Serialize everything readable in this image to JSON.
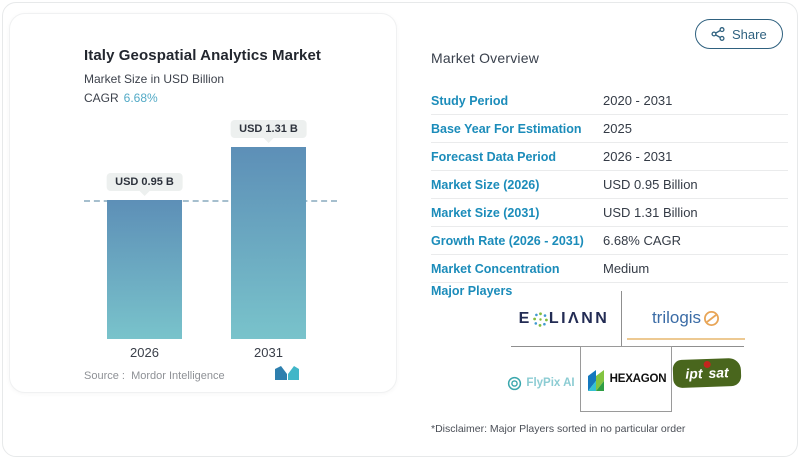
{
  "left_card": {
    "title": "Italy Geospatial Analytics Market",
    "subtitle": "Market Size in USD Billion",
    "cagr_label": "CAGR",
    "cagr_value": "6.68%",
    "source_label": "Source :",
    "source_value": "Mordor Intelligence"
  },
  "chart_data": {
    "type": "bar",
    "categories": [
      "2026",
      "2031"
    ],
    "values": [
      0.95,
      1.31
    ],
    "bar_labels": [
      "USD 0.95 B",
      "USD 1.31 B"
    ],
    "title": "Italy Geospatial Analytics Market",
    "ylabel": "Market Size in USD Billion",
    "ylim": [
      0,
      1.31
    ],
    "reference_line": 0.95,
    "grid": false,
    "legend": "none",
    "bar_gradient": [
      "#5d8fb7",
      "#79c3cb"
    ],
    "reference_line_color": "#a6bfce"
  },
  "right_panel": {
    "heading": "Market Overview",
    "share_label": "Share",
    "rows": [
      {
        "label": "Study Period",
        "value": "2020 - 2031"
      },
      {
        "label": "Base Year For Estimation",
        "value": "2025"
      },
      {
        "label": "Forecast Data Period",
        "value": "2026 - 2031"
      },
      {
        "label": "Market Size (2026)",
        "value": "USD 0.95 Billion"
      },
      {
        "label": "Market Size (2031)",
        "value": "USD 1.31 Billion"
      },
      {
        "label": "Growth Rate (2026 - 2031)",
        "value": "6.68% CAGR"
      },
      {
        "label": "Market Concentration",
        "value": "Medium"
      }
    ],
    "major_players_label": "Major Players",
    "players": {
      "eoliann": {
        "part1": "E",
        "part2": "LIΛNN"
      },
      "trilogis": {
        "text": "trilogis"
      },
      "flypix": {
        "text": "FlyPix AI"
      },
      "hexagon": {
        "text": "HEXAGON"
      },
      "iptsat": {
        "part1": "ipt",
        "part2": "sat"
      }
    },
    "disclaimer": "*Disclaimer: Major Players sorted in no particular order"
  },
  "colors": {
    "accent_label_blue": "#1b8cba",
    "cagr_teal": "#53aac6",
    "share_navy": "#2f617f",
    "badge_bg": "#edf0ef",
    "divider_gray": "#8f8f8f"
  }
}
